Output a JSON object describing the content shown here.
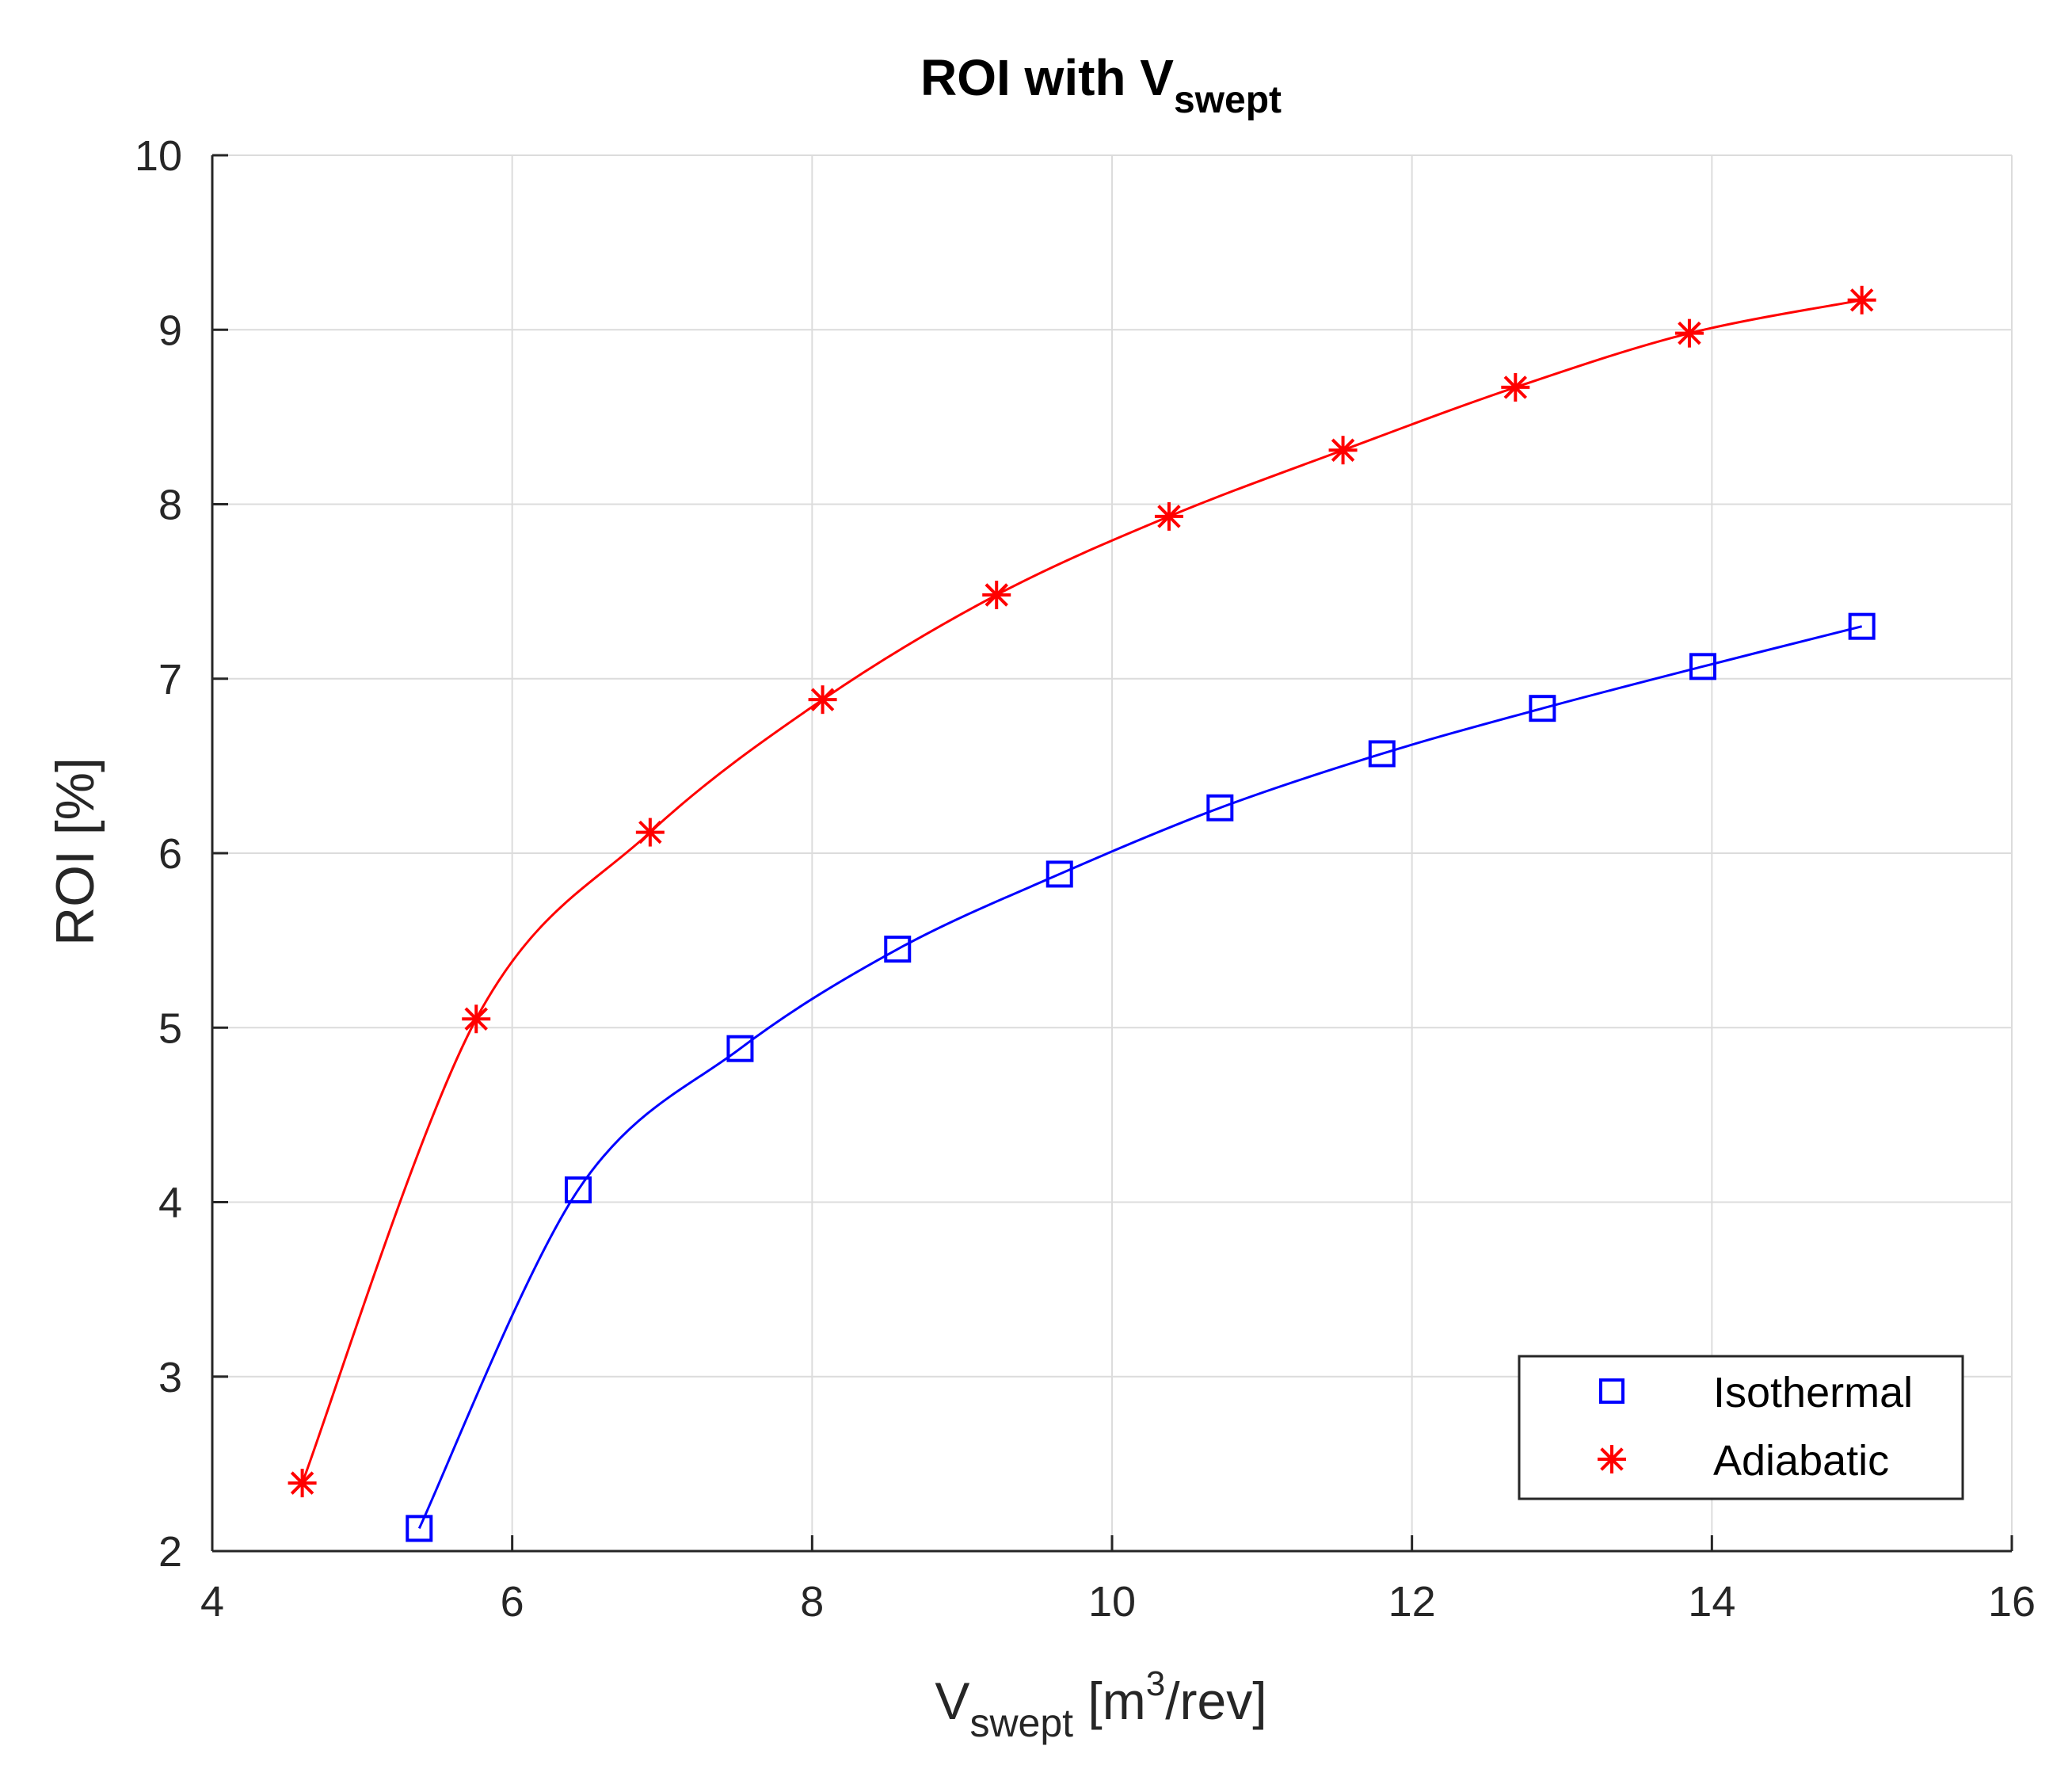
{
  "chart_data": {
    "type": "line",
    "title": {
      "main": "ROI with V",
      "sub": "swept"
    },
    "xlabel": {
      "main": "V",
      "sub": "swept",
      "unit_open": " [m",
      "sup": "3",
      "unit_close": "/rev]"
    },
    "ylabel": "ROI [%]",
    "xlim": [
      4,
      16
    ],
    "ylim": [
      2,
      10
    ],
    "xticks": [
      4,
      6,
      8,
      10,
      12,
      14,
      16
    ],
    "yticks": [
      2,
      3,
      4,
      5,
      6,
      7,
      8,
      9,
      10
    ],
    "x_tick_labels": [
      "4",
      "6",
      "8",
      "10",
      "12",
      "14",
      "16"
    ],
    "y_tick_labels": [
      "2",
      "3",
      "4",
      "5",
      "6",
      "7",
      "8",
      "9",
      "10"
    ],
    "grid": true,
    "legend_position": "bottom-right",
    "series": [
      {
        "name": "Isothermal",
        "color": "#0000ff",
        "marker": "square",
        "x": [
          5.38,
          6.44,
          7.52,
          8.57,
          9.65,
          10.72,
          11.8,
          12.87,
          13.94,
          15.0
        ],
        "y": [
          2.13,
          4.07,
          4.88,
          5.45,
          5.88,
          6.26,
          6.57,
          6.83,
          7.07,
          7.3
        ]
      },
      {
        "name": "Adiabatic",
        "color": "#ff0000",
        "marker": "asterisk",
        "x": [
          4.6,
          5.76,
          6.92,
          8.07,
          9.23,
          10.38,
          11.54,
          12.69,
          13.85,
          15.0
        ],
        "y": [
          2.39,
          5.05,
          6.12,
          6.88,
          7.48,
          7.93,
          8.31,
          8.67,
          8.98,
          9.17
        ]
      }
    ]
  }
}
